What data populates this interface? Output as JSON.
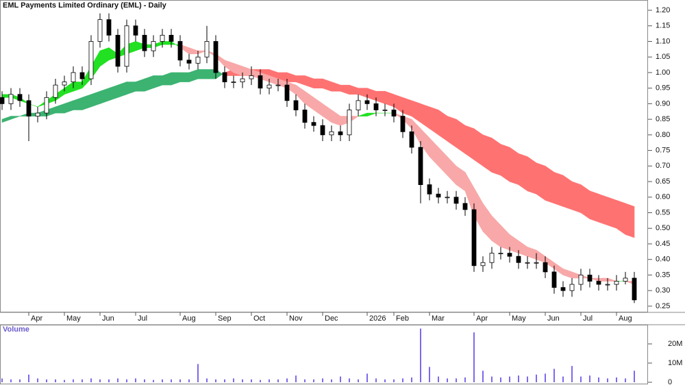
{
  "chart_data": [
    {
      "type": "candlestick",
      "title": "EML Payments Limited Ordinary (EML) - Daily",
      "categories": [
        null,
        null,
        null,
        "Apr",
        null,
        null,
        null,
        "May",
        null,
        null,
        null,
        "Jun",
        null,
        null,
        null,
        "Jul",
        null,
        null,
        null,
        null,
        "Aug",
        null,
        null,
        null,
        "Sep",
        null,
        null,
        null,
        "Oct",
        null,
        null,
        null,
        "Nov",
        null,
        null,
        null,
        "Dec",
        null,
        null,
        null,
        null,
        "2026",
        null,
        null,
        "Feb",
        null,
        null,
        null,
        "Mar",
        null,
        null,
        null,
        null,
        "Apr",
        null,
        null,
        null,
        "May",
        null,
        null,
        null,
        "Jun",
        null,
        null,
        null,
        "Jul",
        null,
        null,
        null,
        "Aug",
        null,
        null
      ],
      "open": [
        0.92,
        0.9,
        0.93,
        0.91,
        0.86,
        0.87,
        0.92,
        0.96,
        0.97,
        1.0,
        0.98,
        1.1,
        1.17,
        1.12,
        1.02,
        1.15,
        1.12,
        1.07,
        1.1,
        1.12,
        1.1,
        1.04,
        1.03,
        1.05,
        1.1,
        1.0,
        0.97,
        0.97,
        0.98,
        0.99,
        0.95,
        0.96,
        0.96,
        0.91,
        0.88,
        0.84,
        0.83,
        0.8,
        0.81,
        0.8,
        0.88,
        0.91,
        0.9,
        0.88,
        0.88,
        0.86,
        0.81,
        0.76,
        0.64,
        0.61,
        0.6,
        0.6,
        0.58,
        0.56,
        0.38,
        0.39,
        0.42,
        0.42,
        0.41,
        0.39,
        0.39,
        0.39,
        0.36,
        0.31,
        0.3,
        0.32,
        0.35,
        0.33,
        0.32,
        0.32,
        0.33,
        0.34
      ],
      "high": [
        0.94,
        0.95,
        0.95,
        0.93,
        0.89,
        0.94,
        0.98,
        0.99,
        1.02,
        1.02,
        1.12,
        1.19,
        1.19,
        1.14,
        1.17,
        1.17,
        1.14,
        1.12,
        1.14,
        1.14,
        1.12,
        1.06,
        1.07,
        1.15,
        1.12,
        1.02,
        0.99,
        1.0,
        1.02,
        1.01,
        0.98,
        0.98,
        0.98,
        0.93,
        0.9,
        0.86,
        0.85,
        0.83,
        0.83,
        0.9,
        0.93,
        0.93,
        0.92,
        0.9,
        0.9,
        0.88,
        0.83,
        0.78,
        0.66,
        0.63,
        0.62,
        0.62,
        0.6,
        0.58,
        0.41,
        0.44,
        0.44,
        0.44,
        0.43,
        0.41,
        0.42,
        0.41,
        0.38,
        0.33,
        0.34,
        0.37,
        0.37,
        0.35,
        0.34,
        0.35,
        0.36,
        0.36
      ],
      "low": [
        0.88,
        0.88,
        0.89,
        0.78,
        0.84,
        0.85,
        0.9,
        0.94,
        0.95,
        0.96,
        0.96,
        1.08,
        1.1,
        1.0,
        1.0,
        1.1,
        1.05,
        1.05,
        1.08,
        1.08,
        1.02,
        1.01,
        1.01,
        1.03,
        0.98,
        0.95,
        0.95,
        0.95,
        0.96,
        0.93,
        0.93,
        0.94,
        0.89,
        0.86,
        0.82,
        0.81,
        0.78,
        0.78,
        0.78,
        0.78,
        0.86,
        0.88,
        0.86,
        0.86,
        0.84,
        0.79,
        0.74,
        0.58,
        0.59,
        0.58,
        0.58,
        0.56,
        0.54,
        0.36,
        0.36,
        0.37,
        0.4,
        0.39,
        0.37,
        0.37,
        0.37,
        0.34,
        0.29,
        0.28,
        0.28,
        0.3,
        0.31,
        0.3,
        0.3,
        0.3,
        0.32,
        0.26
      ],
      "close": [
        0.9,
        0.93,
        0.91,
        0.86,
        0.87,
        0.92,
        0.96,
        0.97,
        1.0,
        0.98,
        1.1,
        1.17,
        1.12,
        1.02,
        1.15,
        1.12,
        1.07,
        1.1,
        1.12,
        1.1,
        1.04,
        1.03,
        1.05,
        1.1,
        1.0,
        0.97,
        0.97,
        0.98,
        0.99,
        0.95,
        0.96,
        0.96,
        0.91,
        0.88,
        0.84,
        0.83,
        0.8,
        0.81,
        0.8,
        0.88,
        0.91,
        0.9,
        0.88,
        0.88,
        0.86,
        0.81,
        0.76,
        0.64,
        0.61,
        0.6,
        0.6,
        0.58,
        0.56,
        0.38,
        0.39,
        0.42,
        0.42,
        0.41,
        0.39,
        0.39,
        0.39,
        0.36,
        0.31,
        0.3,
        0.32,
        0.35,
        0.33,
        0.32,
        0.32,
        0.33,
        0.34,
        0.27
      ],
      "ribbons": [
        {
          "up_color": "#3cb371",
          "down_color": "#ff7272",
          "a": [
            0.85,
            0.86,
            0.86,
            0.87,
            0.87,
            0.88,
            0.89,
            0.9,
            0.91,
            0.92,
            0.93,
            0.94,
            0.95,
            0.96,
            0.97,
            0.97,
            0.98,
            0.99,
            0.99,
            1.0,
            1.0,
            1.0,
            1.01,
            1.01,
            1.01,
            0.99,
            0.99,
            0.99,
            0.99,
            0.98,
            0.98,
            0.98,
            0.97,
            0.97,
            0.96,
            0.95,
            0.95,
            0.94,
            0.94,
            0.93,
            0.93,
            0.92,
            0.91,
            0.9,
            0.89,
            0.87,
            0.86,
            0.84,
            0.82,
            0.8,
            0.78,
            0.76,
            0.74,
            0.72,
            0.7,
            0.68,
            0.67,
            0.65,
            0.64,
            0.62,
            0.61,
            0.59,
            0.58,
            0.57,
            0.56,
            0.55,
            0.53,
            0.52,
            0.51,
            0.5,
            0.48,
            0.47
          ],
          "b": [
            0.84,
            0.85,
            0.86,
            0.86,
            0.86,
            0.86,
            0.87,
            0.87,
            0.88,
            0.88,
            0.89,
            0.9,
            0.91,
            0.92,
            0.93,
            0.94,
            0.94,
            0.95,
            0.96,
            0.96,
            0.97,
            0.97,
            0.98,
            0.98,
            0.98,
            1.0,
            1.01,
            1.01,
            1.01,
            1.01,
            1.01,
            1.0,
            1.0,
            0.99,
            0.99,
            0.98,
            0.98,
            0.97,
            0.96,
            0.96,
            0.95,
            0.95,
            0.94,
            0.94,
            0.93,
            0.92,
            0.91,
            0.9,
            0.89,
            0.88,
            0.86,
            0.85,
            0.83,
            0.82,
            0.8,
            0.79,
            0.77,
            0.76,
            0.74,
            0.73,
            0.71,
            0.7,
            0.68,
            0.67,
            0.65,
            0.64,
            0.62,
            0.61,
            0.6,
            0.59,
            0.58,
            0.57
          ]
        },
        {
          "up_color": "#22e022",
          "down_color": "#f8a8a8",
          "a": [
            0.93,
            0.93,
            0.92,
            0.9,
            0.89,
            0.91,
            0.93,
            0.95,
            0.97,
            0.97,
            1.02,
            1.07,
            1.08,
            1.06,
            1.09,
            1.1,
            1.09,
            1.09,
            1.1,
            1.1,
            1.08,
            1.06,
            1.06,
            1.07,
            1.05,
            1.02,
            1.0,
            0.99,
            0.99,
            0.98,
            0.97,
            0.96,
            0.95,
            0.93,
            0.9,
            0.88,
            0.86,
            0.84,
            0.83,
            0.84,
            0.86,
            0.87,
            0.87,
            0.87,
            0.87,
            0.85,
            0.82,
            0.77,
            0.73,
            0.7,
            0.67,
            0.64,
            0.62,
            0.54,
            0.49,
            0.46,
            0.44,
            0.43,
            0.42,
            0.41,
            0.4,
            0.39,
            0.37,
            0.35,
            0.34,
            0.34,
            0.34,
            0.33,
            0.33,
            0.33,
            0.33,
            0.32
          ],
          "b": [
            0.92,
            0.92,
            0.91,
            0.9,
            0.89,
            0.9,
            0.91,
            0.93,
            0.94,
            0.95,
            0.98,
            1.02,
            1.04,
            1.05,
            1.06,
            1.07,
            1.08,
            1.08,
            1.09,
            1.09,
            1.09,
            1.08,
            1.07,
            1.07,
            1.06,
            1.04,
            1.03,
            1.02,
            1.01,
            1.0,
            0.99,
            0.98,
            0.97,
            0.96,
            0.94,
            0.92,
            0.9,
            0.88,
            0.86,
            0.86,
            0.86,
            0.86,
            0.87,
            0.87,
            0.87,
            0.86,
            0.85,
            0.82,
            0.79,
            0.76,
            0.73,
            0.7,
            0.68,
            0.63,
            0.58,
            0.54,
            0.51,
            0.48,
            0.46,
            0.44,
            0.43,
            0.41,
            0.39,
            0.37,
            0.36,
            0.35,
            0.34,
            0.34,
            0.34,
            0.33,
            0.33,
            0.33
          ]
        }
      ],
      "ylim": [
        0.23,
        1.233
      ],
      "yticks": [
        0.25,
        {
          "value": 0.3,
          "label": "0.30"
        },
        0.35,
        {
          "value": 0.4,
          "label": "0.40"
        },
        0.45,
        {
          "value": 0.5,
          "label": "0.50"
        },
        0.55,
        {
          "value": 0.6,
          "label": "0.60"
        },
        0.65,
        {
          "value": 0.7,
          "label": "0.70"
        },
        0.75,
        {
          "value": 0.8,
          "label": "0.80"
        },
        0.85,
        {
          "value": 0.9,
          "label": "0.90"
        },
        0.95,
        {
          "value": 1.0,
          "label": "1.00"
        },
        1.05,
        {
          "value": 1.1,
          "label": "1.10"
        },
        1.15,
        {
          "value": 1.2,
          "label": "1.20"
        }
      ]
    },
    {
      "type": "bar",
      "title": "Volume",
      "color": "#7b68ee",
      "values": [
        2,
        1.5,
        1.5,
        4,
        2,
        1.5,
        1.5,
        1.2,
        1.5,
        1.5,
        2,
        1.5,
        1.5,
        2,
        1.5,
        2,
        1.5,
        1.2,
        1.5,
        1.5,
        1.5,
        1.5,
        9.5,
        2,
        1.5,
        1.5,
        2,
        1.5,
        1.5,
        1.2,
        1.5,
        1.5,
        2,
        3.5,
        1.5,
        1.5,
        2,
        1.5,
        3,
        2,
        1.5,
        4.5,
        2,
        1.5,
        1.5,
        2,
        2.5,
        28,
        8,
        3,
        2,
        2,
        2.5,
        26,
        6,
        3,
        2.5,
        3,
        3.5,
        3,
        4,
        4.5,
        7,
        3,
        8.5,
        3,
        3.5,
        2.5,
        2,
        2.5,
        2,
        6
      ],
      "ylim": [
        0,
        30
      ],
      "yticks": [
        0,
        {
          "value": 10,
          "label": "10M"
        },
        {
          "value": 20,
          "label": "20M"
        }
      ]
    }
  ]
}
